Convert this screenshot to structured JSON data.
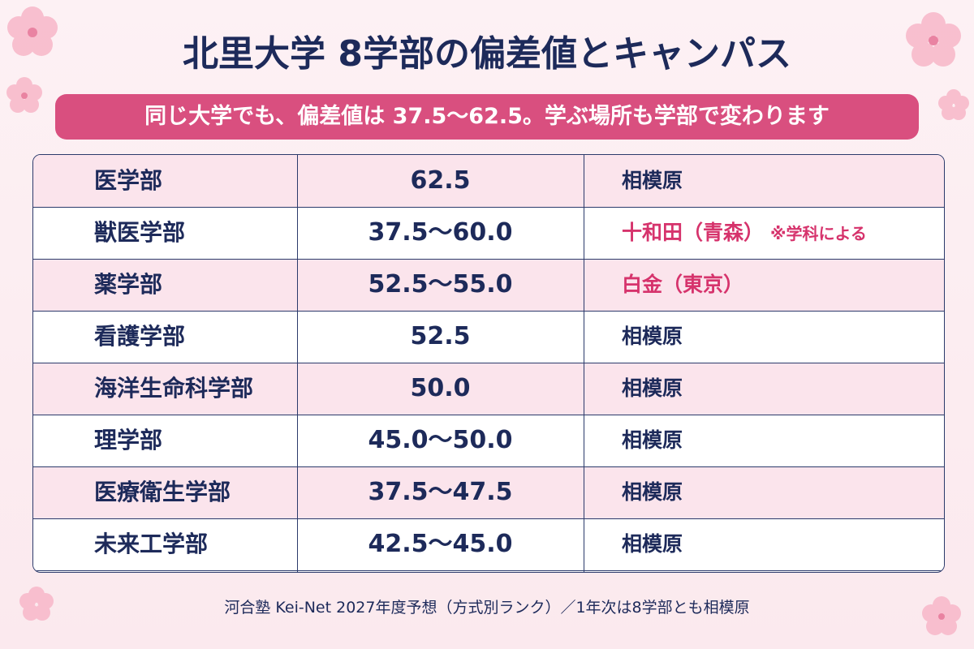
{
  "title": "北里大学 8学部の偏差値とキャンパス",
  "subtitle": "同じ大学でも、偏差値は 37.5〜62.5。学ぶ場所も学部で変わります",
  "table": {
    "rows": [
      {
        "faculty": "医学部",
        "score": "62.5",
        "campus": "相模原"
      },
      {
        "faculty": "獣医学部",
        "score": "37.5〜60.0",
        "campus": "十和田（青森）",
        "note": "※学科による",
        "campus_color": "#d6336c"
      },
      {
        "faculty": "薬学部",
        "score": "52.5〜55.0",
        "campus": "白金（東京）",
        "campus_color": "#d6336c"
      },
      {
        "faculty": "看護学部",
        "score": "52.5",
        "campus": "相模原"
      },
      {
        "faculty": "海洋生命科学部",
        "score": "50.0",
        "campus": "相模原"
      },
      {
        "faculty": "理学部",
        "score": "45.0〜50.0",
        "campus": "相模原"
      },
      {
        "faculty": "医療衛生学部",
        "score": "37.5〜47.5",
        "campus": "相模原"
      },
      {
        "faculty": "未来工学部",
        "score": "42.5〜45.0",
        "campus": "相模原"
      }
    ]
  },
  "footer": "河合塾 Kei-Net 2027年度予想（方式別ランク）／1年次は8学部とも相模原"
}
